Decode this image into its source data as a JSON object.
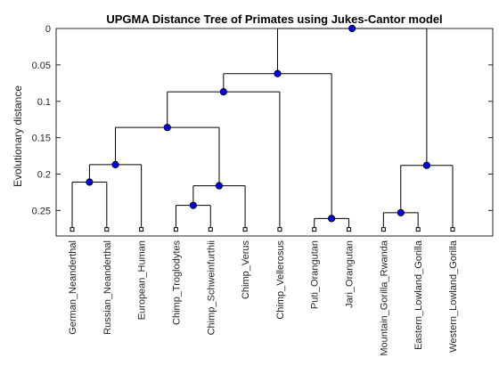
{
  "chart_data": {
    "type": "dendrogram",
    "title": "UPGMA Distance Tree of Primates using Jukes-Cantor model",
    "xlabel": "",
    "ylabel": "Evolutionary distance",
    "ylim": [
      0,
      0.285
    ],
    "y_reversed": true,
    "grid": false,
    "y_ticks": [
      {
        "value": 0,
        "label": "0"
      },
      {
        "value": 0.05,
        "label": "0.05"
      },
      {
        "value": 0.1,
        "label": "0.1"
      },
      {
        "value": 0.15,
        "label": "0.15"
      },
      {
        "value": 0.2,
        "label": "0.2"
      },
      {
        "value": 0.25,
        "label": "0.25"
      }
    ],
    "leaf_distance": 0.276,
    "leaves": [
      "German_Neanderthal",
      "Russian_Neanderthal",
      "European_Human",
      "Chimp_Troglodytes",
      "Chimp_Schweinfurthii",
      "Chimp_Verus",
      "Chimp_Vellerosus",
      "Puti_Orangutan",
      "Jari_Orangutan",
      "Mountain_Gorilla_Rwanda",
      "Eastern_Lowland_Gorilla",
      "Western_Lowland_Gorilla"
    ],
    "nodes": [
      {
        "id": "n1",
        "children": [
          "L0",
          "L1"
        ],
        "distance": 0.211
      },
      {
        "id": "n2",
        "children": [
          "n1",
          "L2"
        ],
        "distance": 0.187
      },
      {
        "id": "n3",
        "children": [
          "L3",
          "L4"
        ],
        "distance": 0.243
      },
      {
        "id": "n4",
        "children": [
          "n3",
          "L5"
        ],
        "distance": 0.216
      },
      {
        "id": "n5",
        "children": [
          "n2",
          "n4"
        ],
        "distance": 0.136
      },
      {
        "id": "n6",
        "children": [
          "n5",
          "L6"
        ],
        "distance": 0.087
      },
      {
        "id": "n7",
        "children": [
          "L7",
          "L8"
        ],
        "distance": 0.261
      },
      {
        "id": "n8",
        "children": [
          "n6",
          "n7"
        ],
        "distance": 0.062
      },
      {
        "id": "n9",
        "children": [
          "L9",
          "L10"
        ],
        "distance": 0.253
      },
      {
        "id": "n10",
        "children": [
          "n9",
          "L11"
        ],
        "distance": 0.188
      },
      {
        "id": "n11",
        "children": [
          "n8",
          "n10"
        ],
        "distance": 0.0
      }
    ]
  }
}
